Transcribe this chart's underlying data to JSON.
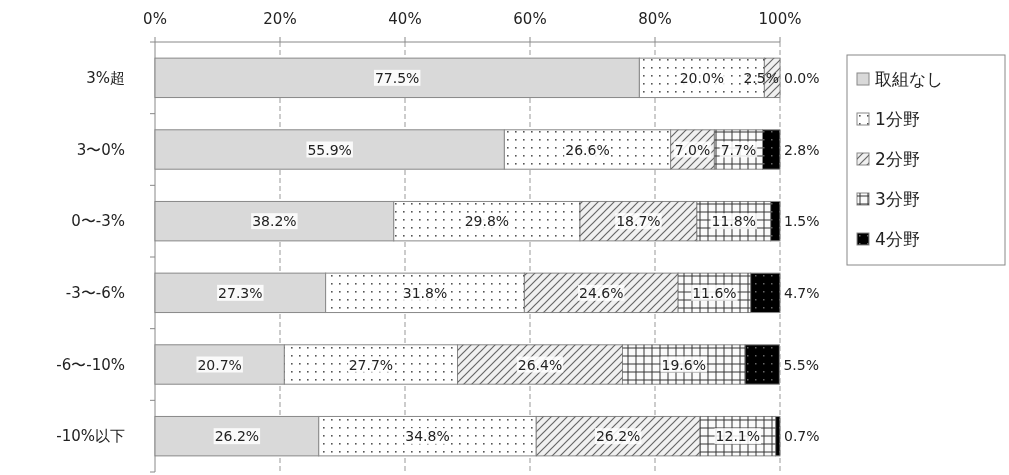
{
  "chart_data": {
    "type": "bar",
    "orientation": "horizontal",
    "stacked": true,
    "categories": [
      "3%超",
      "3〜0%",
      "0〜-3%",
      "-3〜-6%",
      "-6〜-10%",
      "-10%以下"
    ],
    "series": [
      {
        "name": "取組なし",
        "color": "#d9d9d9",
        "values": [
          77.5,
          55.9,
          38.2,
          27.3,
          20.7,
          26.2
        ],
        "value_labels": [
          "77.5%",
          "55.9%",
          "38.2%",
          "27.3%",
          "20.7%",
          "26.2%"
        ]
      },
      {
        "name": "1分野",
        "color": "#ffffff",
        "values": [
          20.0,
          26.6,
          29.8,
          31.8,
          27.7,
          34.8
        ],
        "value_labels": [
          "20.0%",
          "26.6%",
          "29.8%",
          "31.8%",
          "27.7%",
          "34.8%"
        ]
      },
      {
        "name": "2分野",
        "color": "#f0f0f0",
        "values": [
          2.5,
          7.0,
          18.7,
          24.6,
          26.4,
          26.2
        ],
        "value_labels": [
          "2.5%",
          "7.0%",
          "18.7%",
          "24.6%",
          "26.4%",
          "26.2%"
        ]
      },
      {
        "name": "3分野",
        "color": "#fafafa",
        "values": [
          0,
          7.7,
          11.8,
          11.6,
          19.6,
          12.1
        ],
        "value_labels": [
          null,
          "7.7%",
          "11.8%",
          "11.6%",
          "19.6%",
          "12.1%"
        ]
      },
      {
        "name": "4分野",
        "color": "#000000",
        "values": [
          0.0,
          2.8,
          1.5,
          4.7,
          5.5,
          0.7
        ],
        "value_labels": [
          "0.0%",
          "2.8%",
          "1.5%",
          "4.7%",
          "5.5%",
          "0.7%"
        ]
      }
    ],
    "xlim": [
      0,
      100
    ],
    "xticks": [
      {
        "value": 0,
        "label": "0%"
      },
      {
        "value": 20,
        "label": "20%"
      },
      {
        "value": 40,
        "label": "40%"
      },
      {
        "value": 60,
        "label": "60%"
      },
      {
        "value": 80,
        "label": "80%"
      },
      {
        "value": 100,
        "label": "100%"
      }
    ],
    "grid": "x",
    "legend": "right"
  }
}
